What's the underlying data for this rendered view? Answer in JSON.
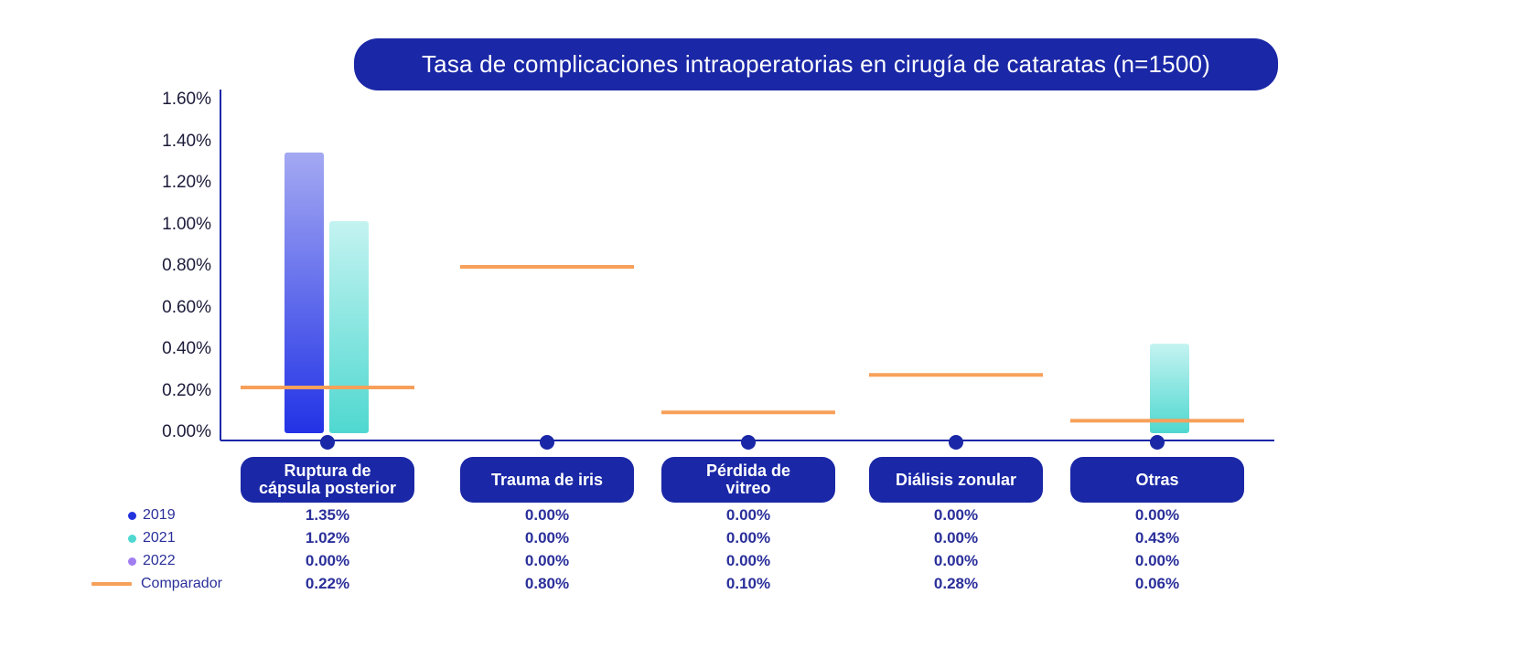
{
  "chart_data": {
    "type": "bar",
    "title": "Tasa de complicaciones intraoperatorias en cirugía de cataratas (n=1500)",
    "categories": [
      "Ruptura de\ncápsula posterior",
      "Trauma de iris",
      "Pérdida de\nvitreo",
      "Diálisis zonular",
      "Otras"
    ],
    "ylim": [
      0,
      1.6
    ],
    "yticks": [
      "0.00%",
      "0.20%",
      "0.40%",
      "0.60%",
      "0.80%",
      "1.00%",
      "1.20%",
      "1.40%",
      "1.60%"
    ],
    "series": [
      {
        "name": "2019",
        "color": "#2233dd",
        "values": [
          1.35,
          0.0,
          0.0,
          0.0,
          0.0
        ],
        "labels": [
          "1.35%",
          "0.00%",
          "0.00%",
          "0.00%",
          "0.00%"
        ]
      },
      {
        "name": "2021",
        "color": "#4fd8d0",
        "values": [
          1.02,
          0.0,
          0.0,
          0.0,
          0.43
        ],
        "labels": [
          "1.02%",
          "0.00%",
          "0.00%",
          "0.00%",
          "0.43%"
        ]
      },
      {
        "name": "2022",
        "color": "#a07ef0",
        "values": [
          0.0,
          0.0,
          0.0,
          0.0,
          0.0
        ],
        "labels": [
          "0.00%",
          "0.00%",
          "0.00%",
          "0.00%",
          "0.00%"
        ]
      }
    ],
    "comparator": {
      "name": "Comparador",
      "color": "#f7a05a",
      "values": [
        0.22,
        0.8,
        0.1,
        0.28,
        0.06
      ],
      "labels": [
        "0.22%",
        "0.80%",
        "0.10%",
        "0.28%",
        "0.06%"
      ]
    },
    "grid": false,
    "legend": "bottom-left"
  }
}
